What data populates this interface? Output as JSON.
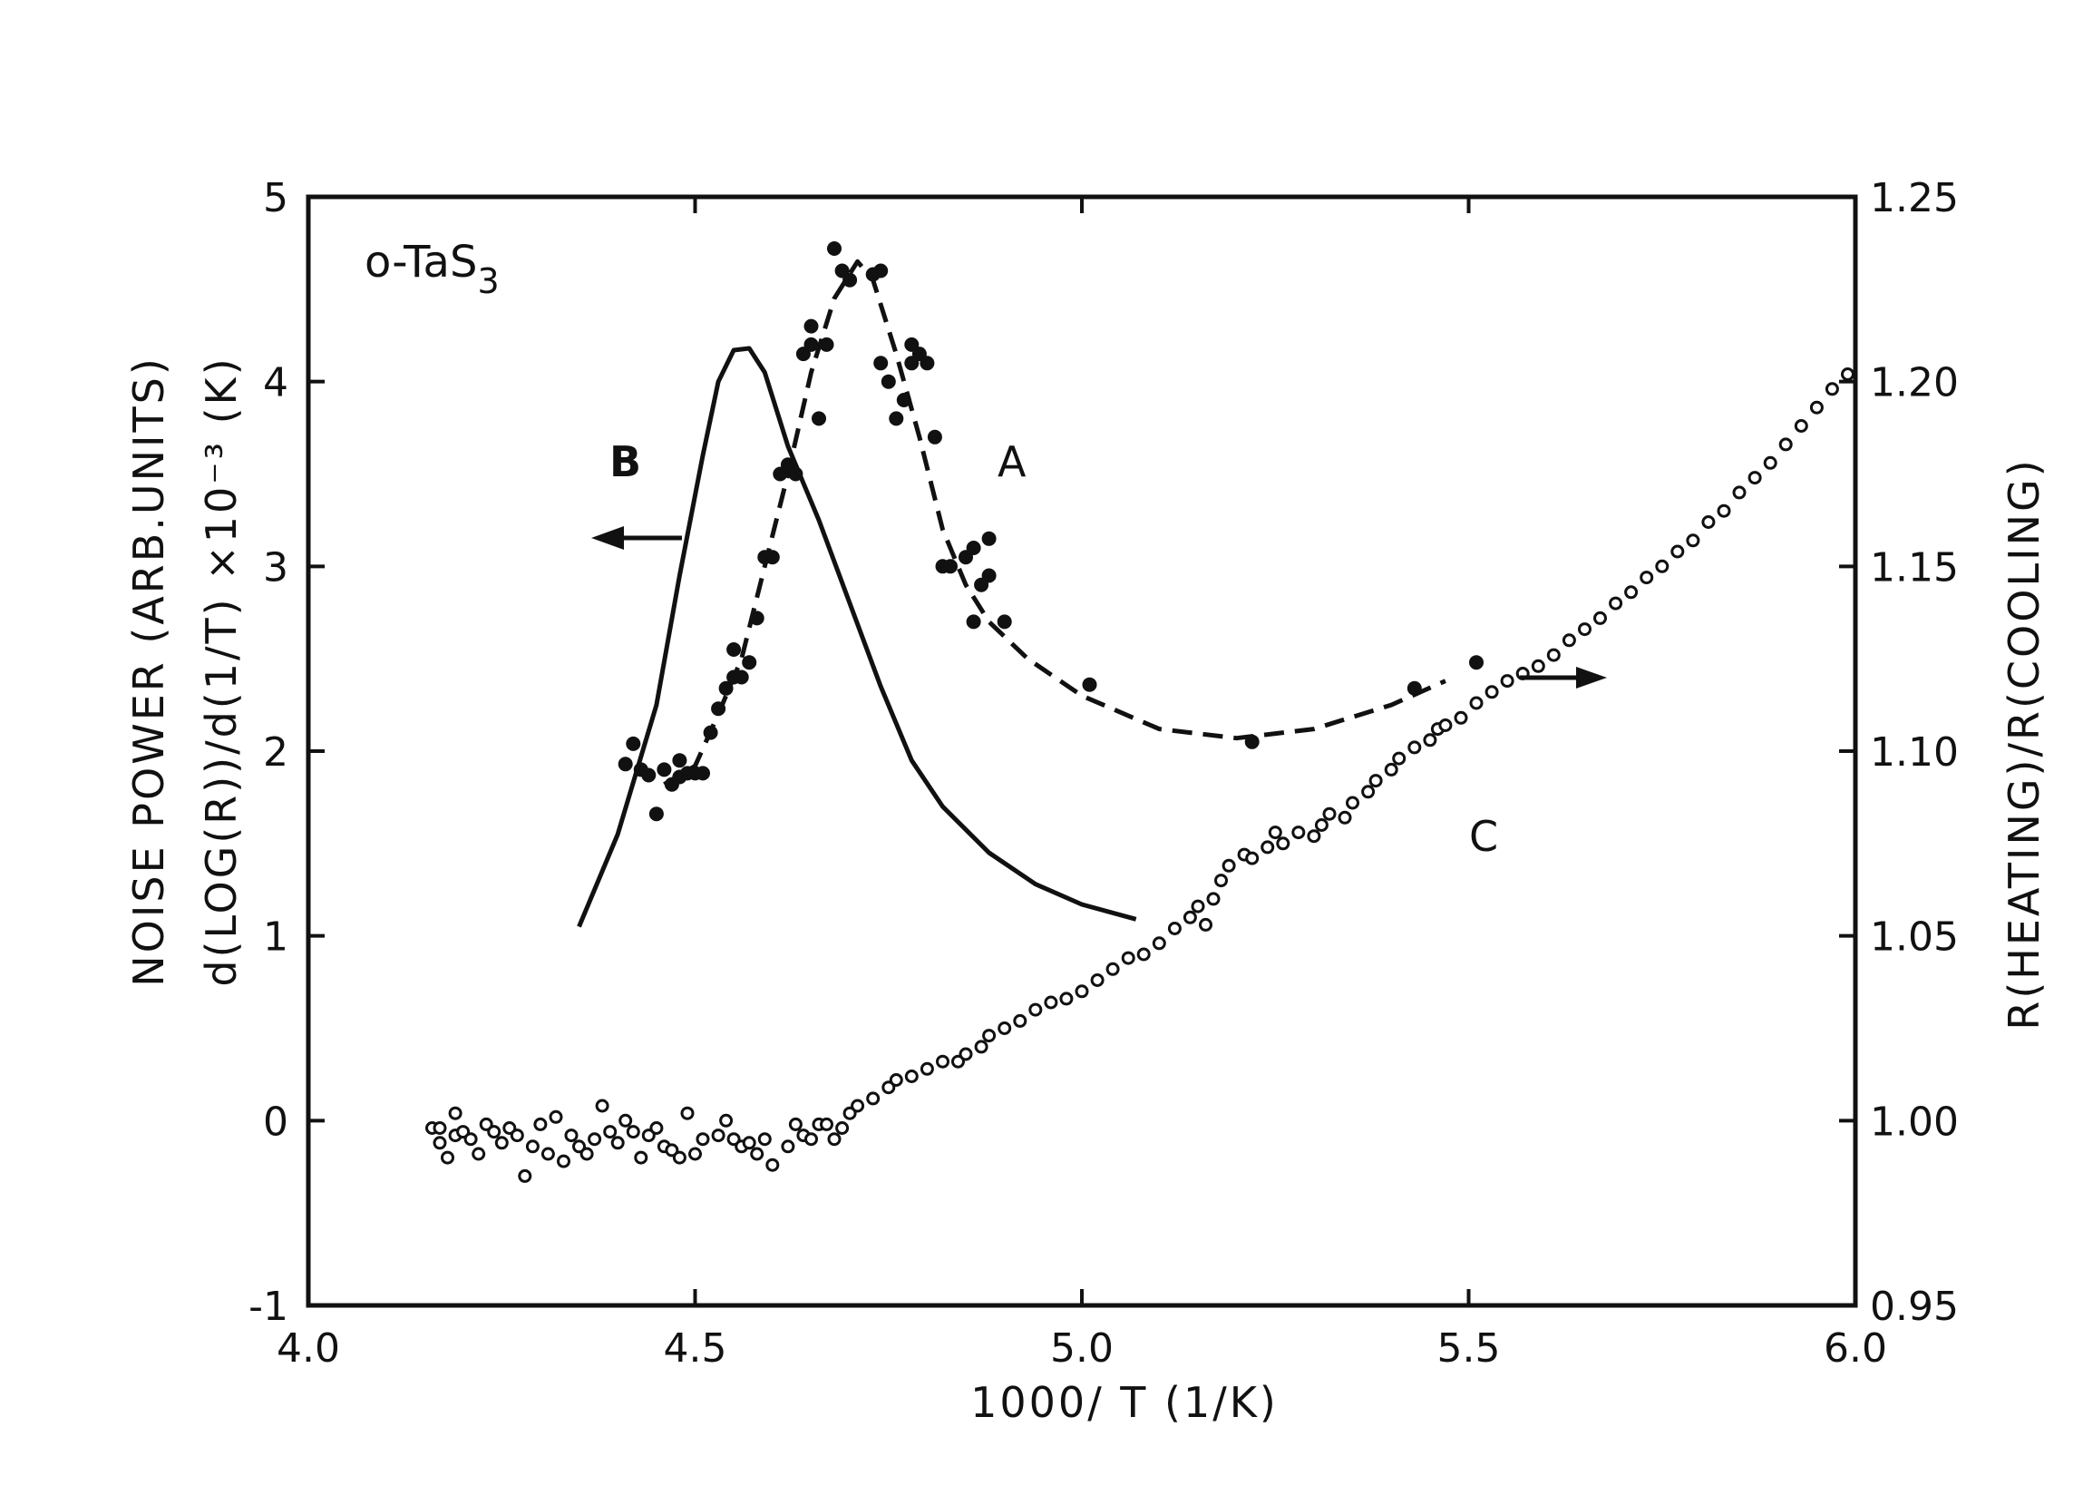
{
  "chart_data": {
    "type": "scatter",
    "sample_label": "o-TaS",
    "sample_label_sub": "3",
    "xlabel": "1000/ T  (1/K)",
    "ylabel_left_line1": "NOISE POWER (ARB.UNITS)",
    "ylabel_left_line2": "d(LOG(R))/d(1/T)  ×10⁻³ (K)",
    "ylabel_right": "R(HEATING)/R(COOLING)",
    "xlim": [
      4.0,
      6.0
    ],
    "ylim_left": [
      -1,
      5
    ],
    "ylim_right": [
      0.95,
      1.25
    ],
    "xticks": [
      "4.0",
      "4.5",
      "5.0",
      "5.5",
      "6.0"
    ],
    "yticks_left": [
      "-1",
      "0",
      "1",
      "2",
      "3",
      "4",
      "5"
    ],
    "yticks_right": [
      "0.95",
      "1.00",
      "1.05",
      "1.10",
      "1.15",
      "1.20",
      "1.25"
    ],
    "grid": false,
    "series": [
      {
        "name": "A",
        "axis": "left",
        "marker": "filled-circle",
        "line": "dashed",
        "points": [
          [
            4.41,
            1.93
          ],
          [
            4.42,
            2.04
          ],
          [
            4.43,
            1.9
          ],
          [
            4.44,
            1.87
          ],
          [
            4.45,
            1.66
          ],
          [
            4.46,
            1.9
          ],
          [
            4.47,
            1.82
          ],
          [
            4.48,
            1.95
          ],
          [
            4.48,
            1.86
          ],
          [
            4.49,
            1.88
          ],
          [
            4.5,
            1.88
          ],
          [
            4.51,
            1.88
          ],
          [
            4.52,
            2.1
          ],
          [
            4.53,
            2.23
          ],
          [
            4.54,
            2.34
          ],
          [
            4.55,
            2.4
          ],
          [
            4.55,
            2.55
          ],
          [
            4.56,
            2.4
          ],
          [
            4.57,
            2.48
          ],
          [
            4.58,
            2.72
          ],
          [
            4.59,
            3.05
          ],
          [
            4.6,
            3.05
          ],
          [
            4.61,
            3.5
          ],
          [
            4.62,
            3.55
          ],
          [
            4.63,
            3.5
          ],
          [
            4.64,
            4.15
          ],
          [
            4.65,
            4.3
          ],
          [
            4.65,
            4.2
          ],
          [
            4.66,
            3.8
          ],
          [
            4.67,
            4.2
          ],
          [
            4.68,
            4.72
          ],
          [
            4.69,
            4.6
          ],
          [
            4.7,
            4.55
          ],
          [
            4.73,
            4.58
          ],
          [
            4.74,
            4.6
          ],
          [
            4.74,
            4.1
          ],
          [
            4.75,
            4.0
          ],
          [
            4.76,
            3.8
          ],
          [
            4.77,
            3.9
          ],
          [
            4.78,
            4.2
          ],
          [
            4.78,
            4.1
          ],
          [
            4.79,
            4.15
          ],
          [
            4.8,
            4.1
          ],
          [
            4.81,
            3.7
          ],
          [
            4.82,
            3.0
          ],
          [
            4.83,
            3.0
          ],
          [
            4.85,
            3.05
          ],
          [
            4.86,
            3.1
          ],
          [
            4.86,
            2.7
          ],
          [
            4.87,
            2.9
          ],
          [
            4.88,
            2.95
          ],
          [
            4.88,
            3.15
          ],
          [
            4.9,
            2.7
          ],
          [
            5.01,
            2.36
          ],
          [
            5.22,
            2.05
          ],
          [
            5.43,
            2.34
          ],
          [
            5.51,
            2.48
          ]
        ],
        "curve": [
          [
            4.46,
            1.82
          ],
          [
            4.5,
            1.92
          ],
          [
            4.53,
            2.2
          ],
          [
            4.56,
            2.5
          ],
          [
            4.59,
            3.0
          ],
          [
            4.62,
            3.5
          ],
          [
            4.65,
            4.05
          ],
          [
            4.68,
            4.45
          ],
          [
            4.71,
            4.65
          ],
          [
            4.73,
            4.55
          ],
          [
            4.76,
            4.15
          ],
          [
            4.79,
            3.7
          ],
          [
            4.82,
            3.2
          ],
          [
            4.85,
            2.9
          ],
          [
            4.88,
            2.7
          ],
          [
            4.93,
            2.5
          ],
          [
            5.0,
            2.3
          ],
          [
            5.1,
            2.12
          ],
          [
            5.2,
            2.07
          ],
          [
            5.3,
            2.12
          ],
          [
            5.4,
            2.25
          ],
          [
            5.47,
            2.38
          ]
        ]
      },
      {
        "name": "B",
        "axis": "left",
        "line": "solid",
        "curve": [
          [
            4.35,
            1.05
          ],
          [
            4.4,
            1.55
          ],
          [
            4.45,
            2.25
          ],
          [
            4.48,
            2.95
          ],
          [
            4.51,
            3.6
          ],
          [
            4.53,
            4.0
          ],
          [
            4.55,
            4.17
          ],
          [
            4.57,
            4.18
          ],
          [
            4.59,
            4.05
          ],
          [
            4.62,
            3.65
          ],
          [
            4.66,
            3.25
          ],
          [
            4.7,
            2.8
          ],
          [
            4.74,
            2.35
          ],
          [
            4.78,
            1.95
          ],
          [
            4.82,
            1.7
          ],
          [
            4.88,
            1.45
          ],
          [
            4.94,
            1.28
          ],
          [
            5.0,
            1.17
          ],
          [
            5.07,
            1.09
          ]
        ]
      },
      {
        "name": "C",
        "axis": "right",
        "marker": "open-circle",
        "points": [
          [
            4.16,
            0.998
          ],
          [
            4.17,
            0.994
          ],
          [
            4.17,
            0.998
          ],
          [
            4.18,
            0.99
          ],
          [
            4.19,
            0.996
          ],
          [
            4.19,
            1.002
          ],
          [
            4.2,
            0.997
          ],
          [
            4.21,
            0.995
          ],
          [
            4.22,
            0.991
          ],
          [
            4.23,
            0.999
          ],
          [
            4.24,
            0.997
          ],
          [
            4.25,
            0.994
          ],
          [
            4.26,
            0.998
          ],
          [
            4.27,
            0.996
          ],
          [
            4.28,
            0.985
          ],
          [
            4.29,
            0.993
          ],
          [
            4.3,
            0.999
          ],
          [
            4.31,
            0.991
          ],
          [
            4.32,
            1.001
          ],
          [
            4.33,
            0.989
          ],
          [
            4.34,
            0.996
          ],
          [
            4.35,
            0.993
          ],
          [
            4.36,
            0.991
          ],
          [
            4.37,
            0.995
          ],
          [
            4.38,
            1.004
          ],
          [
            4.39,
            0.997
          ],
          [
            4.4,
            0.994
          ],
          [
            4.41,
            1.0
          ],
          [
            4.42,
            0.997
          ],
          [
            4.43,
            0.99
          ],
          [
            4.44,
            0.996
          ],
          [
            4.45,
            0.998
          ],
          [
            4.46,
            0.993
          ],
          [
            4.47,
            0.992
          ],
          [
            4.48,
            0.99
          ],
          [
            4.49,
            1.002
          ],
          [
            4.5,
            0.991
          ],
          [
            4.51,
            0.995
          ],
          [
            4.53,
            0.996
          ],
          [
            4.54,
            1.0
          ],
          [
            4.55,
            0.995
          ],
          [
            4.56,
            0.993
          ],
          [
            4.57,
            0.994
          ],
          [
            4.58,
            0.991
          ],
          [
            4.59,
            0.995
          ],
          [
            4.6,
            0.988
          ],
          [
            4.62,
            0.993
          ],
          [
            4.63,
            0.999
          ],
          [
            4.64,
            0.996
          ],
          [
            4.65,
            0.995
          ],
          [
            4.66,
            0.999
          ],
          [
            4.67,
            0.999
          ],
          [
            4.68,
            0.995
          ],
          [
            4.69,
            0.998
          ],
          [
            4.7,
            1.002
          ],
          [
            4.71,
            1.004
          ],
          [
            4.73,
            1.006
          ],
          [
            4.75,
            1.009
          ],
          [
            4.76,
            1.011
          ],
          [
            4.78,
            1.012
          ],
          [
            4.8,
            1.014
          ],
          [
            4.82,
            1.016
          ],
          [
            4.84,
            1.016
          ],
          [
            4.85,
            1.018
          ],
          [
            4.87,
            1.02
          ],
          [
            4.88,
            1.023
          ],
          [
            4.9,
            1.025
          ],
          [
            4.92,
            1.027
          ],
          [
            4.94,
            1.03
          ],
          [
            4.96,
            1.032
          ],
          [
            4.98,
            1.033
          ],
          [
            5.0,
            1.035
          ],
          [
            5.02,
            1.038
          ],
          [
            5.04,
            1.041
          ],
          [
            5.06,
            1.044
          ],
          [
            5.08,
            1.045
          ],
          [
            5.1,
            1.048
          ],
          [
            5.12,
            1.052
          ],
          [
            5.14,
            1.055
          ],
          [
            5.15,
            1.058
          ],
          [
            5.16,
            1.053
          ],
          [
            5.17,
            1.06
          ],
          [
            5.18,
            1.065
          ],
          [
            5.19,
            1.069
          ],
          [
            5.21,
            1.072
          ],
          [
            5.22,
            1.071
          ],
          [
            5.24,
            1.074
          ],
          [
            5.25,
            1.078
          ],
          [
            5.26,
            1.075
          ],
          [
            5.28,
            1.078
          ],
          [
            5.3,
            1.077
          ],
          [
            5.31,
            1.08
          ],
          [
            5.32,
            1.083
          ],
          [
            5.34,
            1.082
          ],
          [
            5.35,
            1.086
          ],
          [
            5.37,
            1.089
          ],
          [
            5.38,
            1.092
          ],
          [
            5.4,
            1.095
          ],
          [
            5.41,
            1.098
          ],
          [
            5.43,
            1.101
          ],
          [
            5.45,
            1.103
          ],
          [
            5.46,
            1.106
          ],
          [
            5.47,
            1.107
          ],
          [
            5.49,
            1.109
          ],
          [
            5.51,
            1.113
          ],
          [
            5.53,
            1.116
          ],
          [
            5.55,
            1.119
          ],
          [
            5.57,
            1.121
          ],
          [
            5.59,
            1.123
          ],
          [
            5.61,
            1.126
          ],
          [
            5.63,
            1.13
          ],
          [
            5.65,
            1.133
          ],
          [
            5.67,
            1.136
          ],
          [
            5.69,
            1.14
          ],
          [
            5.71,
            1.143
          ],
          [
            5.73,
            1.147
          ],
          [
            5.75,
            1.15
          ],
          [
            5.77,
            1.154
          ],
          [
            5.79,
            1.157
          ],
          [
            5.81,
            1.162
          ],
          [
            5.83,
            1.165
          ],
          [
            5.85,
            1.17
          ],
          [
            5.87,
            1.174
          ],
          [
            5.89,
            1.178
          ],
          [
            5.91,
            1.183
          ],
          [
            5.93,
            1.188
          ],
          [
            5.95,
            1.193
          ],
          [
            5.97,
            1.198
          ],
          [
            5.99,
            1.202
          ]
        ]
      }
    ]
  }
}
